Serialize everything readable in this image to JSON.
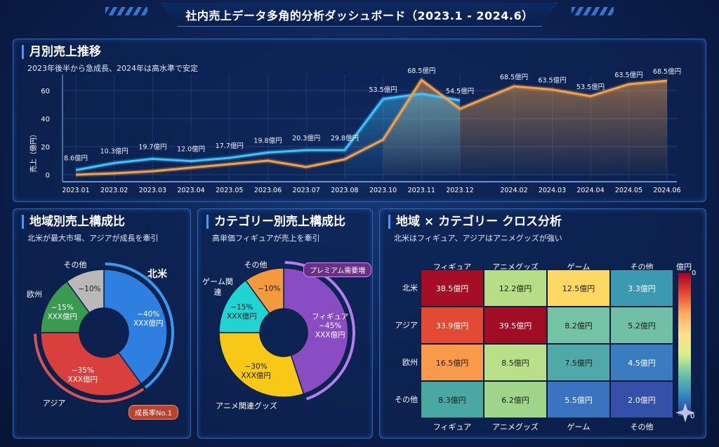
{
  "title": "社内売上データ多角的分析ダッシュボード（2023.1 - 2024.6）",
  "monthly": {
    "title": "月別売上推移",
    "subtitle": "2023年後半から急成長、2024年は高水準で安定",
    "chart_data": {
      "type": "line",
      "ylabel": "売上（億円）",
      "ylim": [
        0,
        65
      ],
      "yticks": [
        "0",
        "20",
        "40",
        "60"
      ],
      "grid": true,
      "categories": [
        "2023.01",
        "2023.02",
        "2023.03",
        "2023.04",
        "2023.05",
        "2023.06",
        "2023.07",
        "2023.08",
        "2023.10",
        "2023.11",
        "2023.12",
        "2024.02",
        "2024.03",
        "2024.04",
        "2024.05",
        "2024.06"
      ],
      "series": [
        {
          "name": "blue",
          "color": "#3fc4ff",
          "values": [
            3.3,
            8.3,
            11.3,
            9.7,
            12,
            15.8,
            17.5,
            17.5,
            54,
            57.7,
            53,
            null,
            null,
            null,
            null,
            null
          ]
        },
        {
          "name": "orange",
          "color": "#f5a14a",
          "values": [
            0,
            1,
            2.5,
            5,
            7.5,
            10,
            5.5,
            11,
            25,
            67.5,
            47,
            63,
            60.7,
            56,
            64.5,
            67
          ]
        }
      ],
      "data_labels": [
        {
          "i": 0,
          "value": 8.6,
          "text": "8.6億円"
        },
        {
          "i": 1,
          "value": 10.3,
          "text": "10.3億円"
        },
        {
          "i": 2,
          "value": 19.7,
          "text": "19.7億円"
        },
        {
          "i": 3,
          "value": 12.0,
          "text": "12.0億円"
        },
        {
          "i": 4,
          "value": 17.7,
          "text": "17.7億円"
        },
        {
          "i": 5,
          "value": 19.8,
          "text": "19.8億円"
        },
        {
          "i": 6,
          "value": 20.3,
          "text": "20.3億円"
        },
        {
          "i": 7,
          "value": 29.8,
          "text": "29.8億円"
        },
        {
          "i": 8,
          "value": 53.5,
          "text": "53.5億円"
        },
        {
          "i": 9,
          "value": 68.5,
          "text": "68.5億円"
        },
        {
          "i": 10,
          "value": 54.5,
          "text": "54.5億円"
        },
        {
          "i": 11,
          "value": 68.5,
          "text": "68.5億円"
        },
        {
          "i": 12,
          "value": 63.5,
          "text": "63.5億円"
        },
        {
          "i": 13,
          "value": 53.5,
          "text": "53.5億円"
        },
        {
          "i": 14,
          "value": 63.5,
          "text": "63.5億円"
        },
        {
          "i": 15,
          "value": 68.5,
          "text": "68.5億円"
        }
      ]
    }
  },
  "region": {
    "title": "地域別売上構成比",
    "subtitle": "北米が最大市場、アジアが成長を牽引",
    "badge": "成長率No.1",
    "chart_data": {
      "type": "pie",
      "slices": [
        {
          "name": "北米",
          "percent": 40,
          "label": "~40%",
          "amount": "XXX億円",
          "color": "#2f7fe0"
        },
        {
          "name": "アジア",
          "percent": 35,
          "label": "~35%",
          "amount": "XXX億円",
          "color": "#d9403d"
        },
        {
          "name": "欧州",
          "percent": 15,
          "label": "~15%",
          "amount": "XXX億円",
          "color": "#3a9a52"
        },
        {
          "name": "その他",
          "percent": 10,
          "label": "~10%",
          "amount": "",
          "color": "#b9b9b9"
        }
      ]
    }
  },
  "category": {
    "title": "カテゴリー別売上構成比",
    "subtitle": "高単価フィギュアが売上を牽引",
    "badge": "プレミアム需要増",
    "chart_data": {
      "type": "pie",
      "slices": [
        {
          "name": "フィギュア",
          "percent": 45,
          "label": "~45%",
          "amount": "XXX億円",
          "color": "#8a4cc2"
        },
        {
          "name": "アニメ関連グッズ",
          "percent": 30,
          "label": "~30%",
          "amount": "XXX億円",
          "color": "#f7c816"
        },
        {
          "name": "ゲーム関連",
          "percent": 15,
          "label": "~15%",
          "amount": "XXX億円",
          "color": "#22d3d3"
        },
        {
          "name": "その他",
          "percent": 10,
          "label": "~10%",
          "amount": "",
          "color": "#f59a3c"
        }
      ]
    }
  },
  "cross": {
    "title": "地域 × カテゴリー クロス分析",
    "subtitle": "北米はフィギュア、アジアはアニメグッズが強い",
    "chart_data": {
      "type": "heatmap",
      "columns": [
        "フィギュア",
        "アニメグッズ",
        "ゲーム",
        "その他"
      ],
      "rows": [
        "北米",
        "アジア",
        "欧州",
        "その他"
      ],
      "values": [
        [
          38.5,
          12.2,
          12.5,
          3.3
        ],
        [
          33.9,
          39.5,
          8.2,
          5.2
        ],
        [
          16.5,
          8.5,
          7.5,
          4.5
        ],
        [
          8.3,
          6.2,
          5.5,
          2.0
        ]
      ],
      "labels": [
        [
          "38.5億円",
          "12.2億円",
          "12.5億円",
          "3.3億円"
        ],
        [
          "33.9億円",
          "39.5億円",
          "8.2億円",
          "5.2億円"
        ],
        [
          "16.5億円",
          "8.5億円",
          "7.5億円",
          "4.5億円"
        ],
        [
          "8.3億円",
          "6.2億円",
          "5.5億円",
          "2.0億円"
        ]
      ],
      "colors": [
        [
          "#a50f26",
          "#b5de86",
          "#fdd865",
          "#3b99b1"
        ],
        [
          "#e34a33",
          "#a00d25",
          "#73c3a4",
          "#6fc0a5"
        ],
        [
          "#f99a4a",
          "#b9e088",
          "#4fa9a8",
          "#3a7cc0"
        ],
        [
          "#4aa8a2",
          "#9ed58a",
          "#3a74c0",
          "#3450a8"
        ]
      ],
      "colorbar": {
        "unit": "億円",
        "top": "0",
        "bottom": "0"
      }
    }
  }
}
